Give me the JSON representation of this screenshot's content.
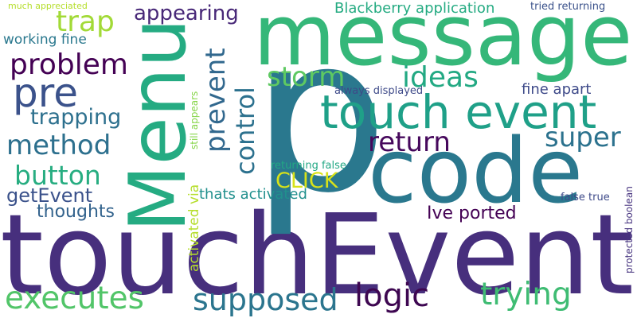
{
  "words": [
    {
      "key": "touchEvent",
      "text": "touchEvent",
      "color": "#472f7d"
    },
    {
      "key": "p",
      "text": "p",
      "color": "#2a788e"
    },
    {
      "key": "message",
      "text": "message",
      "color": "#35b779"
    },
    {
      "key": "code",
      "text": "code",
      "color": "#2a788e"
    },
    {
      "key": "Menu",
      "text": "Menu",
      "color": "#25ab82"
    },
    {
      "key": "touch_event",
      "text": "touch event",
      "color": "#1fa088"
    },
    {
      "key": "logic",
      "text": "logic",
      "color": "#3e0751"
    },
    {
      "key": "executes",
      "text": "executes",
      "color": "#52c569"
    },
    {
      "key": "supposed",
      "text": "supposed",
      "color": "#2b758e"
    },
    {
      "key": "trying",
      "text": "trying",
      "color": "#3fbc73"
    },
    {
      "key": "problem",
      "text": "problem",
      "color": "#440154"
    },
    {
      "key": "pre",
      "text": "pre",
      "color": "#3b528b"
    },
    {
      "key": "method",
      "text": "method",
      "color": "#2d708e"
    },
    {
      "key": "button",
      "text": "button",
      "color": "#27ad81"
    },
    {
      "key": "return",
      "text": "return",
      "color": "#46085c"
    },
    {
      "key": "super",
      "text": "super",
      "color": "#2c728e"
    },
    {
      "key": "trap",
      "text": "trap",
      "color": "#a2da37"
    },
    {
      "key": "ideas",
      "text": "ideas",
      "color": "#23a983"
    },
    {
      "key": "storm",
      "text": "storm",
      "color": "#5ec962"
    },
    {
      "key": "prevent",
      "text": "prevent",
      "color": "#31688e"
    },
    {
      "key": "control",
      "text": "control",
      "color": "#2c718e"
    },
    {
      "key": "appearing",
      "text": "appearing",
      "color": "#482878"
    },
    {
      "key": "trapping",
      "text": "trapping",
      "color": "#2d708e"
    },
    {
      "key": "getEvent",
      "text": "getEvent",
      "color": "#3b528b"
    },
    {
      "key": "thoughts",
      "text": "thoughts",
      "color": "#33638d"
    },
    {
      "key": "CLICK",
      "text": "CLICK",
      "color": "#d8e219"
    },
    {
      "key": "Ive_ported",
      "text": "Ive ported",
      "color": "#440154"
    },
    {
      "key": "Blackberry_application",
      "text": "Blackberry application",
      "color": "#25ab82"
    },
    {
      "key": "working_fine",
      "text": "working fine",
      "color": "#2a788e"
    },
    {
      "key": "fine_apart",
      "text": "fine apart",
      "color": "#3e4a89"
    },
    {
      "key": "thats_activated",
      "text": "thats activated",
      "color": "#21908d"
    },
    {
      "key": "activated_via",
      "text": "activated via",
      "color": "#b5de2b"
    },
    {
      "key": "tried_returning",
      "text": "tried returning",
      "color": "#3b528b"
    },
    {
      "key": "much_appreciated",
      "text": "much appreciated",
      "color": "#b5de2b"
    },
    {
      "key": "always_displayed",
      "text": "always displayed",
      "color": "#3e4a89"
    },
    {
      "key": "returning_false",
      "text": "returning false",
      "color": "#22a884"
    },
    {
      "key": "false_true",
      "text": "false true",
      "color": "#3e4a89"
    },
    {
      "key": "still_appears",
      "text": "still appears",
      "color": "#86d549"
    },
    {
      "key": "protected_boolean",
      "text": "protected boolean",
      "color": "#46337f"
    }
  ]
}
